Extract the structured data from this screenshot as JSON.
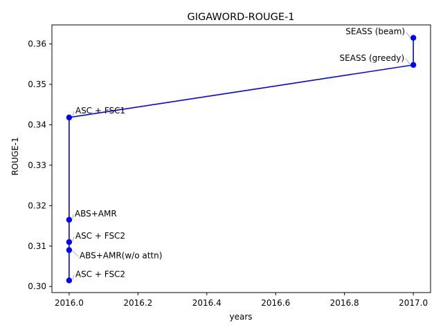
{
  "chart_data": {
    "type": "line",
    "title": "GIGAWORD-ROUGE-1",
    "xlabel": "years",
    "ylabel": "ROUGE-1",
    "xlim": [
      2015.95,
      2017.05
    ],
    "ylim": [
      0.2985,
      0.3647
    ],
    "grid": false,
    "x_ticks": [
      2016.0,
      2016.2,
      2016.4,
      2016.6,
      2016.8,
      2017.0
    ],
    "x_tick_labels": [
      "2016.0",
      "2016.2",
      "2016.4",
      "2016.6",
      "2016.8",
      "2017.0"
    ],
    "y_ticks": [
      0.3,
      0.31,
      0.32,
      0.33,
      0.34,
      0.35,
      0.36
    ],
    "y_tick_labels": [
      "0.30",
      "0.31",
      "0.32",
      "0.33",
      "0.34",
      "0.35",
      "0.36"
    ],
    "series": [
      {
        "color": "#0000ff",
        "points": [
          {
            "x": 2016.0,
            "y": 0.3015,
            "label": "ASC + FSC2"
          },
          {
            "x": 2016.0,
            "y": 0.309,
            "label": "ABS+AMR(w/o attn)"
          },
          {
            "x": 2016.0,
            "y": 0.311,
            "label": "ASC + FSC2"
          },
          {
            "x": 2016.0,
            "y": 0.3165,
            "label": "ABS+AMR"
          },
          {
            "x": 2016.0,
            "y": 0.3418,
            "label": "ASC + FSC1"
          },
          {
            "x": 2017.0,
            "y": 0.3548,
            "label": "SEASS (greedy)"
          },
          {
            "x": 2017.0,
            "y": 0.3615,
            "label": "SEASS (beam)"
          }
        ]
      }
    ]
  }
}
